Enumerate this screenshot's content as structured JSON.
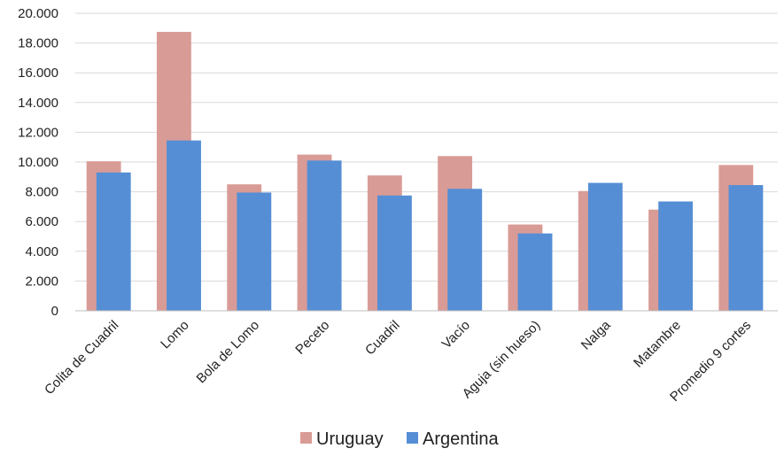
{
  "chart_data": {
    "type": "bar",
    "title": "",
    "xlabel": "",
    "ylabel": "",
    "categories": [
      "Colita de Cuadril",
      "Lomo",
      "Bola de Lomo",
      "Peceto",
      "Cuadril",
      "Vacío",
      "Aguja (sin hueso)",
      "Nalga",
      "Matambre",
      "Promedio 9 cortes"
    ],
    "series": [
      {
        "name": "Uruguay",
        "color": "#d99b96",
        "values": [
          10050,
          18750,
          8500,
          10500,
          9100,
          10400,
          5800,
          8050,
          6800,
          9800
        ]
      },
      {
        "name": "Argentina",
        "color": "#558ed5",
        "values": [
          9300,
          11450,
          7950,
          10100,
          7750,
          8200,
          5200,
          8600,
          7350,
          8450
        ]
      }
    ],
    "ylim": [
      0,
      20000
    ],
    "yticks": [
      0,
      2000,
      4000,
      6000,
      8000,
      10000,
      12000,
      14000,
      16000,
      18000,
      20000
    ],
    "ytick_labels": [
      "0",
      "2.000",
      "4.000",
      "6.000",
      "8.000",
      "10.000",
      "12.000",
      "14.000",
      "16.000",
      "18.000",
      "20.000"
    ],
    "grid": true,
    "legend_position": "bottom"
  }
}
